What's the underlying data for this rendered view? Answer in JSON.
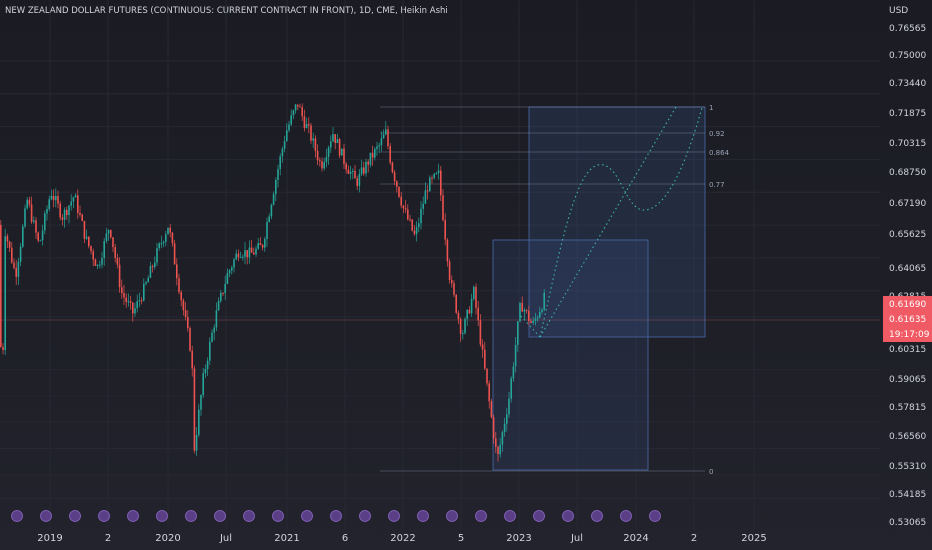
{
  "chart_data": {
    "type": "candlestick",
    "title": "NEW ZEALAND DOLLAR FUTURES (CONTINUOUS: CURRENT CONTRACT IN FRONT), 1D, CME, Heikin Ashi",
    "currency": "USD",
    "y_ticks": [
      "0.76565",
      "0.75000",
      "0.73440",
      "0.71875",
      "0.70315",
      "0.68750",
      "0.67190",
      "0.65625",
      "0.64065",
      "0.62815",
      "0.61690",
      "0.61635",
      "19:17:09",
      "0.60315",
      "0.59065",
      "0.57815",
      "0.56560",
      "0.55310",
      "0.54185",
      "0.53065"
    ],
    "x_ticks": [
      "2019",
      "2",
      "2020",
      "Jul",
      "2021",
      "6",
      "2022",
      "5",
      "2023",
      "Jul",
      "2024",
      "2",
      "2025"
    ],
    "price_now": "0.61690",
    "price_prev": "0.61635",
    "countdown": "19:17:09",
    "fib_levels": [
      "1",
      "0.92",
      "0.864",
      "0.77",
      "0"
    ],
    "trend_points": [
      [
        2018.6,
        0.672
      ],
      [
        2018.7,
        0.648
      ],
      [
        2018.8,
        0.684
      ],
      [
        2018.9,
        0.662
      ],
      [
        2019.0,
        0.688
      ],
      [
        2019.1,
        0.676
      ],
      [
        2019.2,
        0.686
      ],
      [
        2019.3,
        0.665
      ],
      [
        2019.4,
        0.652
      ],
      [
        2019.5,
        0.672
      ],
      [
        2019.6,
        0.64
      ],
      [
        2019.7,
        0.63
      ],
      [
        2019.8,
        0.642
      ],
      [
        2019.9,
        0.658
      ],
      [
        2020.0,
        0.672
      ],
      [
        2020.1,
        0.64
      ],
      [
        2020.2,
        0.61
      ],
      [
        2020.22,
        0.565
      ],
      [
        2020.3,
        0.6
      ],
      [
        2020.4,
        0.628
      ],
      [
        2020.5,
        0.648
      ],
      [
        2020.6,
        0.66
      ],
      [
        2020.7,
        0.658
      ],
      [
        2020.8,
        0.662
      ],
      [
        2020.9,
        0.69
      ],
      [
        2021.0,
        0.716
      ],
      [
        2021.1,
        0.73
      ],
      [
        2021.15,
        0.722
      ],
      [
        2021.2,
        0.716
      ],
      [
        2021.3,
        0.7
      ],
      [
        2021.4,
        0.716
      ],
      [
        2021.5,
        0.702
      ],
      [
        2021.6,
        0.692
      ],
      [
        2021.7,
        0.702
      ],
      [
        2021.8,
        0.71
      ],
      [
        2021.85,
        0.716
      ],
      [
        2021.9,
        0.7
      ],
      [
        2022.0,
        0.68
      ],
      [
        2022.1,
        0.666
      ],
      [
        2022.2,
        0.69
      ],
      [
        2022.3,
        0.696
      ],
      [
        2022.4,
        0.645
      ],
      [
        2022.5,
        0.62
      ],
      [
        2022.6,
        0.64
      ],
      [
        2022.7,
        0.6
      ],
      [
        2022.8,
        0.56
      ],
      [
        2022.9,
        0.59
      ],
      [
        2023.0,
        0.635
      ],
      [
        2023.1,
        0.624
      ],
      [
        2023.2,
        0.637
      ],
      [
        2023.3,
        0.614
      ]
    ]
  }
}
